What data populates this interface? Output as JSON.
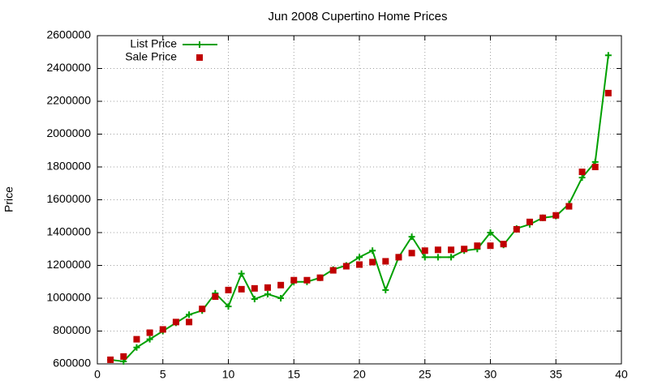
{
  "chart_data": {
    "type": "line",
    "title": "Jun 2008 Cupertino Home Prices",
    "ylabel": "Price",
    "x": [
      1,
      2,
      3,
      4,
      5,
      6,
      7,
      8,
      9,
      10,
      11,
      12,
      13,
      14,
      15,
      16,
      17,
      18,
      19,
      20,
      21,
      22,
      23,
      24,
      25,
      26,
      27,
      28,
      29,
      30,
      31,
      32,
      33,
      34,
      35,
      36,
      37,
      38,
      39
    ],
    "series": [
      {
        "name": "List Price",
        "color": "#00a000",
        "mode": "lines+markers",
        "values": [
          625000,
          615000,
          700000,
          750000,
          800000,
          850000,
          900000,
          925000,
          1030000,
          950000,
          1150000,
          995000,
          1025000,
          1000000,
          1100000,
          1100000,
          1125000,
          1175000,
          1200000,
          1250000,
          1290000,
          1050000,
          1250000,
          1375000,
          1250000,
          1250000,
          1250000,
          1290000,
          1300000,
          1400000,
          1325000,
          1425000,
          1450000,
          1490000,
          1500000,
          1575000,
          1735000,
          1830000,
          2480000
        ]
      },
      {
        "name": "Sale Price",
        "color": "#c00000",
        "mode": "markers",
        "values": [
          625000,
          645000,
          750000,
          790000,
          810000,
          855000,
          855000,
          935000,
          1010000,
          1050000,
          1055000,
          1060000,
          1065000,
          1080000,
          1110000,
          1110000,
          1125000,
          1170000,
          1195000,
          1205000,
          1220000,
          1225000,
          1250000,
          1275000,
          1290000,
          1295000,
          1295000,
          1300000,
          1320000,
          1320000,
          1330000,
          1420000,
          1465000,
          1490000,
          1505000,
          1560000,
          1770000,
          1800000,
          2250000
        ]
      }
    ],
    "xlim": [
      0,
      40
    ],
    "xticks": [
      0,
      5,
      10,
      15,
      20,
      25,
      30,
      35,
      40
    ],
    "ylim": [
      600000,
      2600000
    ],
    "yticks": [
      600000,
      800000,
      1000000,
      1200000,
      1400000,
      1600000,
      1800000,
      2000000,
      2200000,
      2400000,
      2600000
    ],
    "grid": true,
    "legend": "top-left"
  }
}
